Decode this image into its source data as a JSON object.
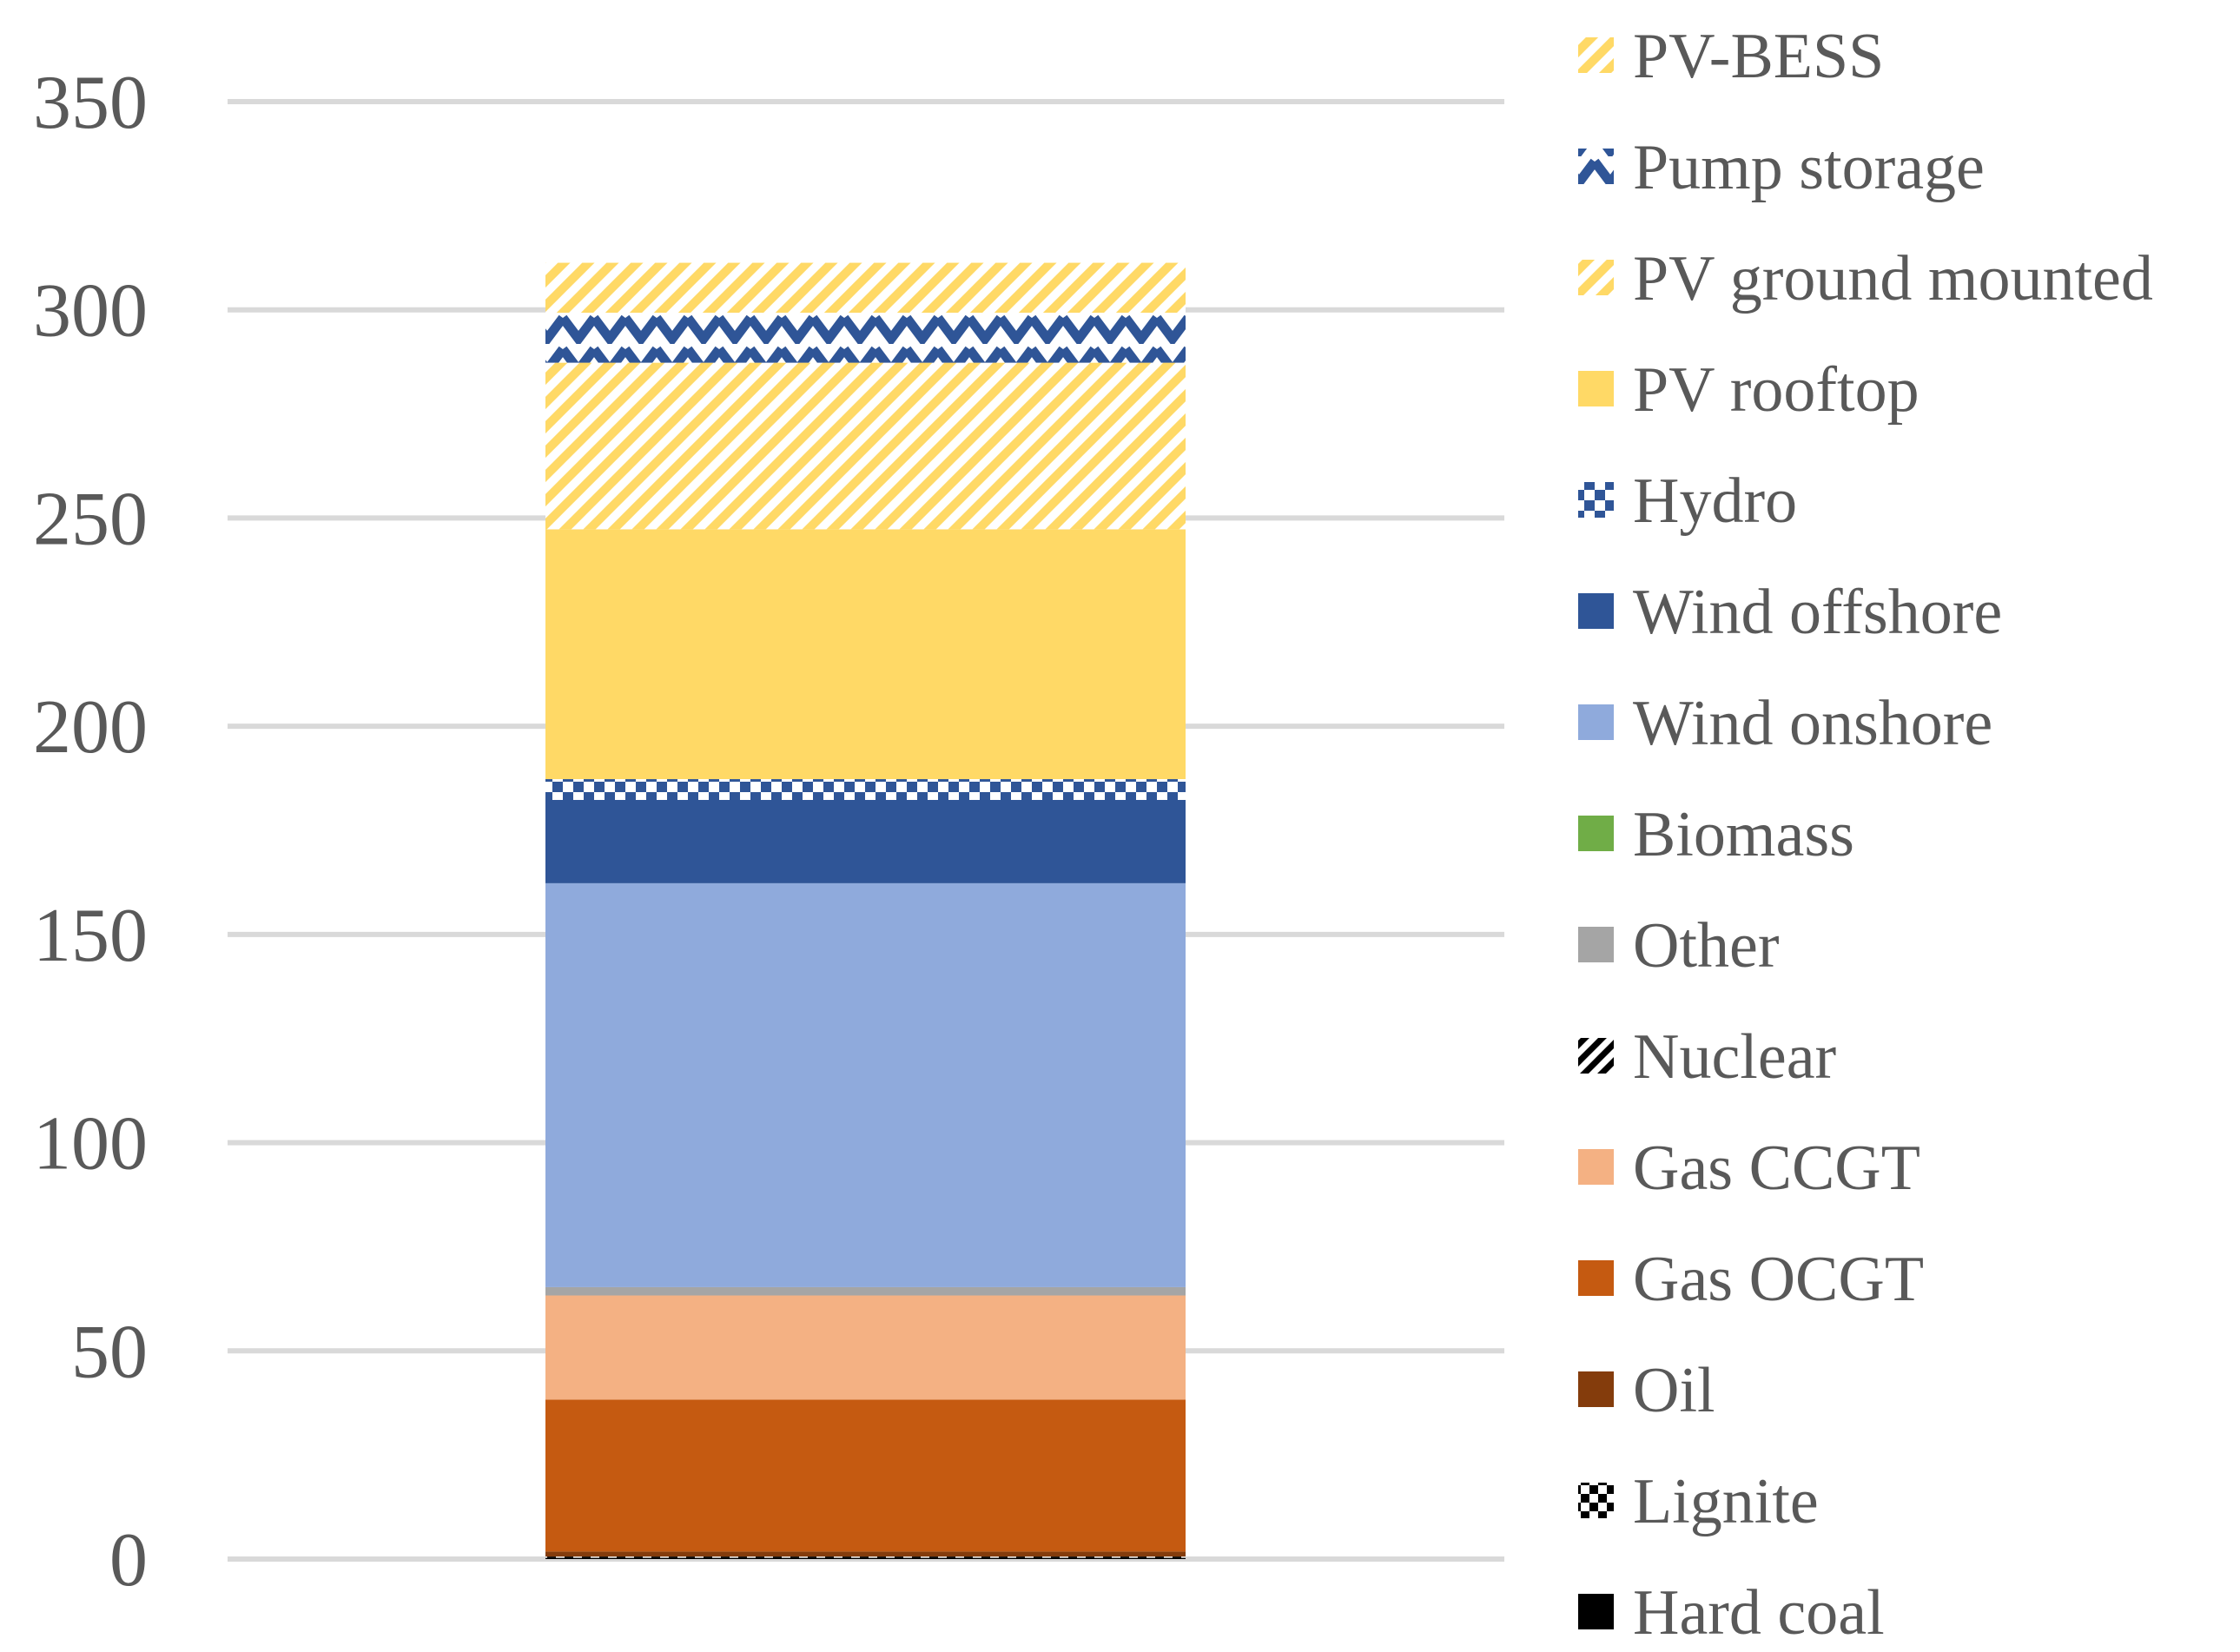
{
  "chart_data": {
    "type": "bar",
    "stacked": true,
    "categories": [
      ""
    ],
    "ylim": [
      0,
      350
    ],
    "yticks": [
      0,
      50,
      100,
      150,
      200,
      250,
      300,
      350
    ],
    "ytick_labels": [
      "0",
      "50",
      "100",
      "150",
      "200",
      "250",
      "300",
      "350"
    ],
    "grid": true,
    "legend_position": "right",
    "series": [
      {
        "name": "Hard coal",
        "values": [
          0.3
        ],
        "color": "#000000",
        "pattern": "solid"
      },
      {
        "name": "Lignite",
        "values": [
          0.3
        ],
        "color": "#000000",
        "pattern": "checker"
      },
      {
        "name": "Oil",
        "values": [
          1.2
        ],
        "color": "#843c0c",
        "pattern": "solid"
      },
      {
        "name": "Gas OCGT",
        "values": [
          36.5
        ],
        "color": "#c55a11",
        "pattern": "solid"
      },
      {
        "name": "Gas CCGT",
        "values": [
          25
        ],
        "color": "#f4b183",
        "pattern": "solid"
      },
      {
        "name": "Nuclear",
        "values": [
          0
        ],
        "color": "#000000",
        "pattern": "diagonal"
      },
      {
        "name": "Other",
        "values": [
          2
        ],
        "color": "#a5a5a5",
        "pattern": "solid"
      },
      {
        "name": "Biomass",
        "values": [
          0
        ],
        "color": "#70ad47",
        "pattern": "solid"
      },
      {
        "name": "Wind onshore",
        "values": [
          97
        ],
        "color": "#8faadc",
        "pattern": "solid"
      },
      {
        "name": "Wind offshore",
        "values": [
          20
        ],
        "color": "#2f5597",
        "pattern": "solid"
      },
      {
        "name": "Hydro",
        "values": [
          5
        ],
        "color": "#2f5597",
        "pattern": "checker"
      },
      {
        "name": "PV rooftop",
        "values": [
          60
        ],
        "color": "#ffd966",
        "pattern": "solid"
      },
      {
        "name": "PV ground mounted",
        "values": [
          40
        ],
        "color": "#ffd966",
        "pattern": "diagonal"
      },
      {
        "name": "Pump storage",
        "values": [
          12
        ],
        "color": "#2f5597",
        "pattern": "zigzag"
      },
      {
        "name": "PV-BESS",
        "values": [
          12
        ],
        "color": "#ffd966",
        "pattern": "diagonal"
      }
    ],
    "legend_order": [
      "PV-BESS",
      "Pump storage",
      "PV ground mounted",
      "PV rooftop",
      "Hydro",
      "Wind offshore",
      "Wind onshore",
      "Biomass",
      "Other",
      "Nuclear",
      "Gas CCGT",
      "Gas OCGT",
      "Oil",
      "Lignite",
      "Hard coal"
    ]
  }
}
